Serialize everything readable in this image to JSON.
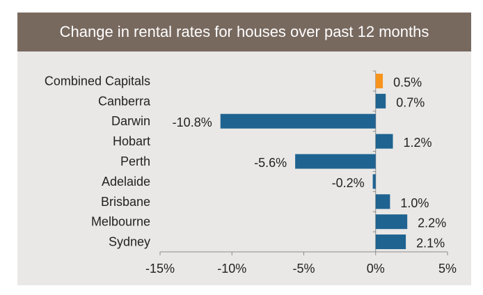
{
  "chart_data": {
    "type": "bar",
    "orientation": "horizontal",
    "title": "Change in rental rates for houses over past 12 months",
    "categories": [
      "Combined Capitals",
      "Canberra",
      "Darwin",
      "Hobart",
      "Perth",
      "Adelaide",
      "Brisbane",
      "Melbourne",
      "Sydney"
    ],
    "values": [
      0.5,
      0.7,
      -10.8,
      1.2,
      -5.6,
      -0.2,
      1.0,
      2.2,
      2.1
    ],
    "value_labels": [
      "0.5%",
      "0.7%",
      "-10.8%",
      "1.2%",
      "-5.6%",
      "-0.2%",
      "1.0%",
      "2.2%",
      "2.1%"
    ],
    "xlim": [
      -15,
      5
    ],
    "xticks": [
      -15,
      -10,
      -5,
      0,
      5
    ],
    "xtick_labels": [
      "-15%",
      "-10%",
      "-5%",
      "0%",
      "5%"
    ],
    "grid": false,
    "colors": {
      "bar": "#1f6391",
      "highlight": "#f7941d",
      "header": "#78695f",
      "background": "#e9e8e6"
    },
    "highlight_category": "Combined Capitals"
  }
}
